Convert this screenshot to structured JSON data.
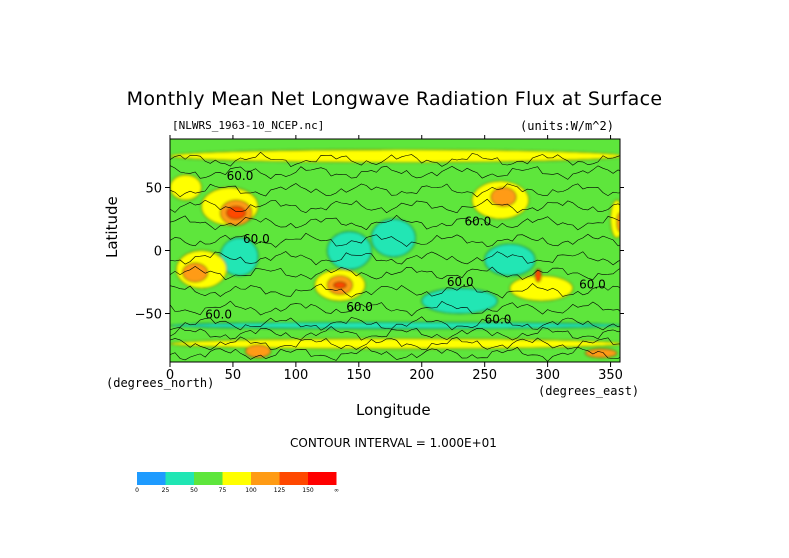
{
  "chart_data": {
    "type": "heatmap",
    "title": "Monthly Mean Net Longwave Radiation Flux at Surface",
    "file_label": "[NLWRS_1963-10_NCEP.nc]",
    "units_label": "(units:W/m^2)",
    "xlabel": "Longitude",
    "ylabel": "Latitude",
    "x_units": "(degrees_east)",
    "y_units": "(degrees_north)",
    "xlim": [
      0,
      357.5
    ],
    "ylim": [
      -88.5,
      88.5
    ],
    "x_ticks": [
      0,
      50,
      100,
      150,
      200,
      250,
      300,
      350
    ],
    "y_ticks": [
      50,
      0,
      -50
    ],
    "contour_interval_text": "CONTOUR INTERVAL = 1.000E+01",
    "contour_labels": [
      "60.0",
      "60.0",
      "60.0",
      "60.0",
      "60.0",
      "60.0",
      "60.0",
      "60.0"
    ],
    "colorbar": {
      "colors": [
        "#1e9bff",
        "#20e6b4",
        "#5ee63c",
        "#ffff00",
        "#ff9b14",
        "#ff4800",
        "#ff0000"
      ],
      "labels": [
        "0",
        "25",
        "50",
        "75",
        "100",
        "125",
        "150",
        "∞"
      ]
    },
    "regions": [
      {
        "level": 1,
        "lon": [
          40,
          70
        ],
        "lat": [
          -20,
          10
        ]
      },
      {
        "level": 1,
        "lon": [
          125,
          160
        ],
        "lat": [
          -15,
          15
        ]
      },
      {
        "level": 1,
        "lon": [
          160,
          195
        ],
        "lat": [
          -5,
          25
        ]
      },
      {
        "level": 1,
        "lon": [
          250,
          290
        ],
        "lat": [
          -20,
          5
        ]
      },
      {
        "level": 1,
        "lon": [
          200,
          260
        ],
        "lat": [
          -50,
          -30
        ]
      },
      {
        "level": 1,
        "lon": [
          0,
          360
        ],
        "lat": [
          -62,
          -57
        ]
      },
      {
        "level": 3,
        "lon": [
          0,
          25
        ],
        "lat": [
          40,
          60
        ]
      },
      {
        "level": 3,
        "lon": [
          25,
          70
        ],
        "lat": [
          20,
          50
        ]
      },
      {
        "level": 3,
        "lon": [
          240,
          285
        ],
        "lat": [
          25,
          55
        ]
      },
      {
        "level": 3,
        "lon": [
          115,
          155
        ],
        "lat": [
          -40,
          -15
        ]
      },
      {
        "level": 3,
        "lon": [
          5,
          45
        ],
        "lat": [
          -30,
          0
        ]
      },
      {
        "level": 3,
        "lon": [
          270,
          320
        ],
        "lat": [
          -40,
          -20
        ]
      },
      {
        "level": 3,
        "lon": [
          350,
          360
        ],
        "lat": [
          10,
          40
        ]
      },
      {
        "level": 3,
        "lon": [
          0,
          360
        ],
        "lat": [
          -78,
          -70
        ]
      },
      {
        "level": 3,
        "lon": [
          0,
          360
        ],
        "lat": [
          70,
          80
        ]
      },
      {
        "level": 4,
        "lon": [
          40,
          65
        ],
        "lat": [
          20,
          40
        ]
      },
      {
        "level": 4,
        "lon": [
          255,
          275
        ],
        "lat": [
          35,
          50
        ]
      },
      {
        "level": 4,
        "lon": [
          125,
          145
        ],
        "lat": [
          -35,
          -20
        ]
      },
      {
        "level": 4,
        "lon": [
          10,
          30
        ],
        "lat": [
          -25,
          -10
        ]
      },
      {
        "level": 4,
        "lon": [
          355,
          360
        ],
        "lat": [
          15,
          30
        ]
      },
      {
        "level": 4,
        "lon": [
          60,
          80
        ],
        "lat": [
          -85,
          -75
        ]
      },
      {
        "level": 4,
        "lon": [
          330,
          355
        ],
        "lat": [
          -85,
          -78
        ]
      },
      {
        "level": 5,
        "lon": [
          45,
          60
        ],
        "lat": [
          25,
          35
        ]
      },
      {
        "level": 5,
        "lon": [
          130,
          140
        ],
        "lat": [
          -30,
          -25
        ]
      },
      {
        "level": 5,
        "lon": [
          290,
          295
        ],
        "lat": [
          -25,
          -15
        ]
      }
    ]
  }
}
